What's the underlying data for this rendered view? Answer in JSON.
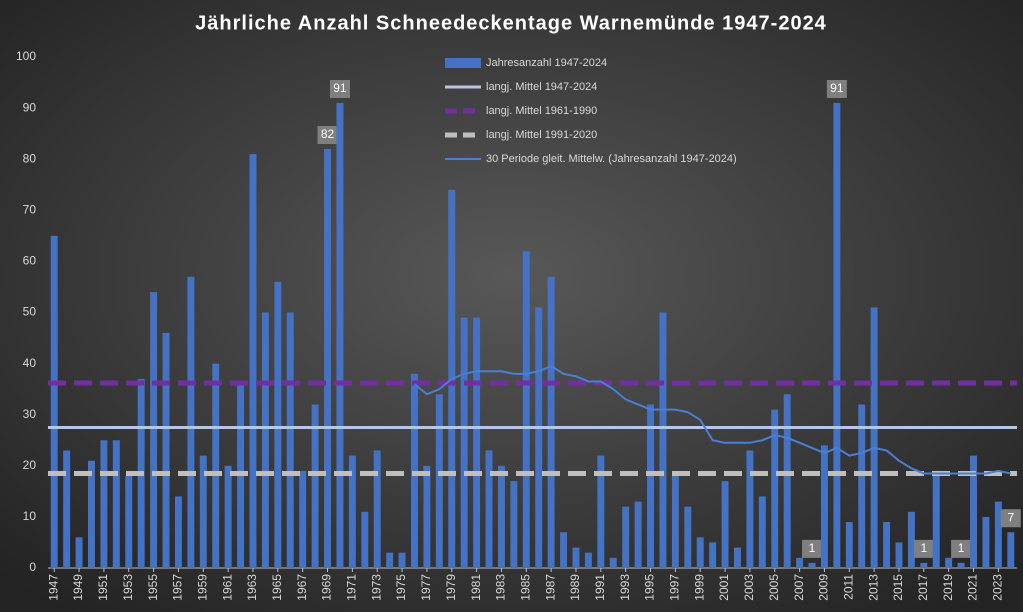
{
  "chart_data": {
    "type": "bar",
    "title": "Jährliche Anzahl Schneedeckentage Warnemünde 1947-2024",
    "categories": [
      "1947",
      null,
      "1949",
      null,
      "1951",
      null,
      "1953",
      null,
      "1955",
      null,
      "1957",
      null,
      "1959",
      null,
      "1961",
      null,
      "1963",
      null,
      "1965",
      null,
      "1967",
      null,
      "1969",
      null,
      "1971",
      null,
      "1973",
      null,
      "1975",
      null,
      "1977",
      null,
      "1979",
      null,
      "1981",
      null,
      "1983",
      null,
      "1985",
      null,
      "1987",
      null,
      "1989",
      null,
      "1991",
      null,
      "1993",
      null,
      "1995",
      null,
      "1997",
      null,
      "1999",
      null,
      "2001",
      null,
      "2003",
      null,
      "2005",
      null,
      "2007",
      null,
      "2009",
      null,
      "2011",
      null,
      "2013",
      null,
      "2015",
      null,
      "2017",
      null,
      "2019",
      null,
      "2021",
      null,
      "2023",
      null
    ],
    "series": [
      {
        "name": "Jahresanzahl 1947-2024",
        "type": "bar",
        "color": "#4472c4",
        "values": [
          65,
          23,
          6,
          21,
          25,
          25,
          18,
          37,
          54,
          46,
          14,
          57,
          22,
          40,
          20,
          36,
          81,
          50,
          56,
          50,
          19,
          32,
          82,
          91,
          22,
          11,
          23,
          3,
          3,
          38,
          20,
          34,
          74,
          49,
          49,
          23,
          20,
          17,
          62,
          51,
          57,
          7,
          4,
          3,
          22,
          2,
          12,
          13,
          32,
          50,
          18,
          12,
          6,
          5,
          17,
          4,
          23,
          14,
          31,
          34,
          2,
          1,
          24,
          91,
          9,
          32,
          51,
          9,
          5,
          11,
          1,
          19,
          2,
          1,
          22,
          10,
          13,
          7
        ],
        "value_labels": [
          null,
          null,
          null,
          null,
          null,
          null,
          null,
          null,
          null,
          null,
          null,
          null,
          null,
          null,
          null,
          null,
          null,
          null,
          null,
          null,
          null,
          null,
          "82",
          "91",
          null,
          null,
          null,
          null,
          null,
          null,
          null,
          null,
          null,
          null,
          null,
          null,
          null,
          null,
          null,
          null,
          null,
          null,
          null,
          null,
          null,
          null,
          null,
          null,
          null,
          null,
          null,
          null,
          null,
          null,
          null,
          null,
          null,
          null,
          null,
          null,
          null,
          "1",
          null,
          "91",
          null,
          null,
          null,
          null,
          null,
          null,
          "1",
          null,
          null,
          "1",
          null,
          null,
          null,
          "7"
        ]
      },
      {
        "name": "langj. Mittel 1947-2024",
        "type": "hline",
        "color": "#b4c7e7",
        "value": 27.5,
        "dash": "solid"
      },
      {
        "name": "langj. Mittel 1961-1990",
        "type": "hline",
        "color": "#7030a0",
        "value": 36.2,
        "dash": "dashed"
      },
      {
        "name": "langj. Mittel 1991-2020",
        "type": "hline",
        "color": "#bfbfbf",
        "value": 18.5,
        "dash": "dashed"
      },
      {
        "name": "30 Periode gleit. Mittelw. (Jahresanzahl 1947-2024)",
        "type": "line",
        "color": "#4a7fd4",
        "values": [
          null,
          null,
          null,
          null,
          null,
          null,
          null,
          null,
          null,
          null,
          null,
          null,
          null,
          null,
          null,
          null,
          null,
          null,
          null,
          null,
          null,
          null,
          null,
          null,
          null,
          null,
          null,
          null,
          null,
          36,
          34,
          35,
          37,
          38,
          38.5,
          38.5,
          38.5,
          38,
          38,
          38.5,
          39.5,
          38,
          37.5,
          36.5,
          36.5,
          35,
          33,
          32,
          31,
          31,
          31,
          30.5,
          29,
          25,
          24.5,
          24.5,
          24.5,
          25,
          26,
          25.5,
          24.5,
          23.5,
          22.5,
          23.5,
          22,
          22.5,
          23.5,
          23,
          21,
          19.5,
          18.5,
          18.5,
          18.5,
          18.5,
          18.5,
          18.5,
          19,
          18.5
        ]
      }
    ],
    "ylim": [
      0,
      100
    ],
    "yticks": [
      0,
      10,
      20,
      30,
      40,
      50,
      60,
      70,
      80,
      90,
      100
    ],
    "grid": false
  }
}
